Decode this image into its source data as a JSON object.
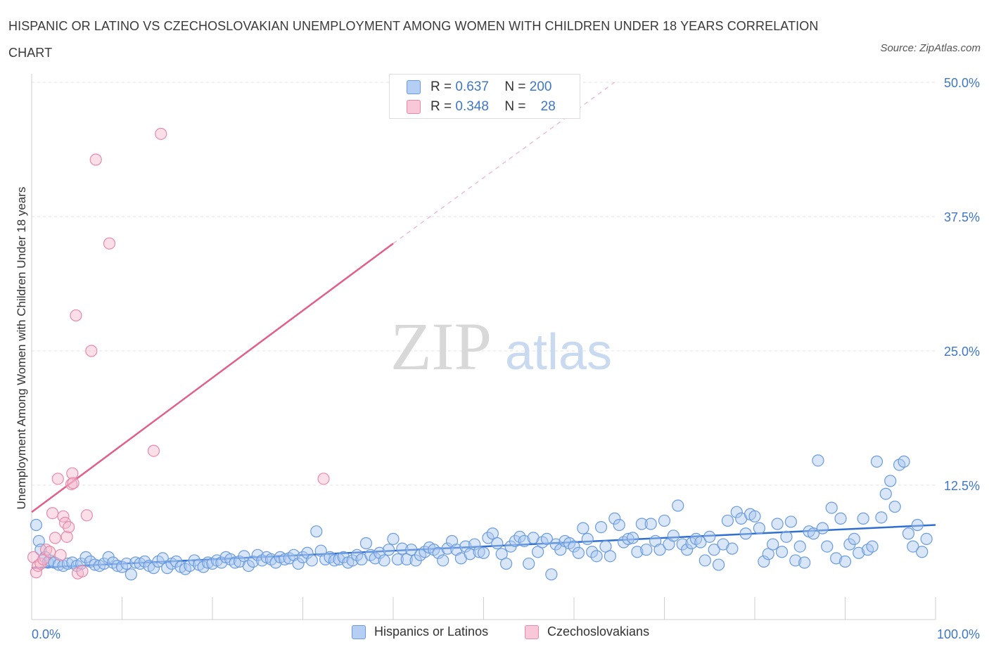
{
  "chart_data": {
    "type": "scatter",
    "title": "HISPANIC OR LATINO VS CZECHOSLOVAKIAN UNEMPLOYMENT AMONG WOMEN WITH CHILDREN UNDER 18 YEARS CORRELATION CHART",
    "source": "Source: ZipAtlas.com",
    "ylabel": "Unemployment Among Women with Children Under 18 years",
    "xlim": [
      0,
      100
    ],
    "ylim": [
      0,
      50
    ],
    "x_tick_labels": [
      "0.0%",
      "100.0%"
    ],
    "y_tick_values": [
      12.5,
      25.0,
      37.5,
      50.0
    ],
    "y_tick_labels": [
      "12.5%",
      "25.0%",
      "37.5%",
      "50.0%"
    ],
    "watermark": "ZIPatlas",
    "legend": [
      {
        "r_label": "R =",
        "r": "0.637",
        "n_label": "N =",
        "n": "200"
      },
      {
        "r_label": "R =",
        "r": "0.348",
        "n_label": "N =",
        "n": "28"
      }
    ],
    "series": [
      {
        "name": "Hispanics or Latinos",
        "color": "#aac8f0",
        "stroke": "#6a9be0",
        "trend": {
          "x0": 0,
          "y0": 4.8,
          "x1": 100,
          "y1": 8.8,
          "color": "#2f6fd0"
        },
        "points": [
          [
            0.5,
            8.8
          ],
          [
            0.8,
            7.3
          ],
          [
            1,
            6.5
          ],
          [
            1.5,
            5.8
          ],
          [
            1.8,
            5.3
          ],
          [
            2,
            5.5
          ],
          [
            2.5,
            5.3
          ],
          [
            3,
            5.1
          ],
          [
            3.5,
            5.0
          ],
          [
            4,
            5.2
          ],
          [
            4.5,
            5.3
          ],
          [
            5,
            5.0
          ],
          [
            5.5,
            5.2
          ],
          [
            6,
            5.8
          ],
          [
            6.5,
            5.4
          ],
          [
            7,
            5.1
          ],
          [
            7.5,
            5.0
          ],
          [
            8,
            5.2
          ],
          [
            8.5,
            5.8
          ],
          [
            9,
            5.3
          ],
          [
            9.5,
            5.0
          ],
          [
            10,
            4.9
          ],
          [
            10.5,
            5.2
          ],
          [
            11,
            4.2
          ],
          [
            11.5,
            5.3
          ],
          [
            12,
            5.2
          ],
          [
            12.5,
            5.4
          ],
          [
            13,
            5.0
          ],
          [
            13.5,
            4.8
          ],
          [
            14,
            5.4
          ],
          [
            14.5,
            5.7
          ],
          [
            15,
            4.8
          ],
          [
            15.5,
            5.2
          ],
          [
            16,
            5.4
          ],
          [
            16.5,
            4.9
          ],
          [
            17,
            4.7
          ],
          [
            17.5,
            5.0
          ],
          [
            18,
            5.5
          ],
          [
            18.5,
            5.1
          ],
          [
            19,
            4.9
          ],
          [
            19.5,
            5.3
          ],
          [
            20,
            5.2
          ],
          [
            20.5,
            5.5
          ],
          [
            21,
            5.3
          ],
          [
            21.5,
            5.8
          ],
          [
            22,
            5.6
          ],
          [
            22.5,
            5.3
          ],
          [
            23,
            5.4
          ],
          [
            23.5,
            5.9
          ],
          [
            24,
            5.0
          ],
          [
            24.5,
            5.4
          ],
          [
            25,
            6.0
          ],
          [
            25.5,
            5.5
          ],
          [
            26,
            5.8
          ],
          [
            26.5,
            5.6
          ],
          [
            27,
            5.3
          ],
          [
            27.5,
            5.8
          ],
          [
            28,
            5.6
          ],
          [
            28.5,
            5.7
          ],
          [
            29,
            6.0
          ],
          [
            29.5,
            5.2
          ],
          [
            30,
            5.8
          ],
          [
            30.5,
            6.2
          ],
          [
            31,
            5.5
          ],
          [
            31.5,
            8.2
          ],
          [
            32,
            6.4
          ],
          [
            32.5,
            5.6
          ],
          [
            33,
            5.8
          ],
          [
            33.5,
            5.5
          ],
          [
            34,
            5.6
          ],
          [
            34.5,
            5.8
          ],
          [
            35,
            5.3
          ],
          [
            35.5,
            5.5
          ],
          [
            36,
            6.0
          ],
          [
            36.5,
            5.6
          ],
          [
            37,
            7.1
          ],
          [
            37.5,
            6.0
          ],
          [
            38,
            5.7
          ],
          [
            38.5,
            6.2
          ],
          [
            39,
            5.5
          ],
          [
            39.5,
            6.5
          ],
          [
            40,
            7.5
          ],
          [
            40.5,
            5.6
          ],
          [
            41,
            6.6
          ],
          [
            41.5,
            5.6
          ],
          [
            42,
            6.5
          ],
          [
            42.5,
            5.5
          ],
          [
            43,
            6.0
          ],
          [
            43.5,
            6.3
          ],
          [
            44,
            6.7
          ],
          [
            44.5,
            6.5
          ],
          [
            45,
            6.2
          ],
          [
            45.5,
            5.5
          ],
          [
            46,
            6.6
          ],
          [
            46.5,
            7.3
          ],
          [
            47,
            6.5
          ],
          [
            47.5,
            5.7
          ],
          [
            48,
            6.8
          ],
          [
            48.5,
            6.1
          ],
          [
            49,
            7.0
          ],
          [
            49.5,
            6.3
          ],
          [
            50,
            6.2
          ],
          [
            50.5,
            7.6
          ],
          [
            51,
            8.0
          ],
          [
            51.5,
            7.1
          ],
          [
            52,
            6.1
          ],
          [
            52.5,
            5.2
          ],
          [
            53,
            6.8
          ],
          [
            53.5,
            7.3
          ],
          [
            54,
            7.7
          ],
          [
            54.5,
            7.3
          ],
          [
            55,
            5.2
          ],
          [
            55.5,
            7.6
          ],
          [
            56,
            6.3
          ],
          [
            56.5,
            7.2
          ],
          [
            57,
            7.5
          ],
          [
            57.5,
            4.2
          ],
          [
            58,
            7.0
          ],
          [
            58.5,
            6.5
          ],
          [
            59,
            7.3
          ],
          [
            59.5,
            7.1
          ],
          [
            60,
            6.8
          ],
          [
            60.5,
            6.2
          ],
          [
            61,
            8.5
          ],
          [
            61.5,
            7.5
          ],
          [
            62,
            6.3
          ],
          [
            62.5,
            5.9
          ],
          [
            63,
            8.6
          ],
          [
            63.5,
            6.8
          ],
          [
            64,
            5.9
          ],
          [
            64.5,
            9.4
          ],
          [
            65,
            8.8
          ],
          [
            65.5,
            7.2
          ],
          [
            66,
            7.5
          ],
          [
            66.5,
            7.6
          ],
          [
            67,
            6.3
          ],
          [
            67.5,
            8.9
          ],
          [
            68,
            6.5
          ],
          [
            68.5,
            8.9
          ],
          [
            69,
            7.3
          ],
          [
            69.5,
            6.5
          ],
          [
            70,
            9.2
          ],
          [
            70.5,
            7.0
          ],
          [
            71,
            7.8
          ],
          [
            71.5,
            10.6
          ],
          [
            72,
            7.0
          ],
          [
            72.5,
            6.5
          ],
          [
            73,
            7.1
          ],
          [
            73.5,
            7.5
          ],
          [
            74,
            7.2
          ],
          [
            74.5,
            5.5
          ],
          [
            75,
            7.7
          ],
          [
            75.5,
            6.5
          ],
          [
            76,
            5.1
          ],
          [
            76.5,
            7.0
          ],
          [
            77,
            9.2
          ],
          [
            77.5,
            6.6
          ],
          [
            78,
            10.0
          ],
          [
            78.5,
            9.4
          ],
          [
            79,
            8.0
          ],
          [
            79.5,
            9.8
          ],
          [
            80,
            9.6
          ],
          [
            80.5,
            8.5
          ],
          [
            81,
            5.4
          ],
          [
            81.5,
            6.1
          ],
          [
            82,
            7.0
          ],
          [
            82.5,
            8.9
          ],
          [
            83,
            6.3
          ],
          [
            83.5,
            7.7
          ],
          [
            84,
            9.1
          ],
          [
            84.5,
            5.5
          ],
          [
            85,
            6.8
          ],
          [
            85.5,
            5.3
          ],
          [
            86,
            8.2
          ],
          [
            86.5,
            8.0
          ],
          [
            87,
            14.8
          ],
          [
            87.5,
            8.5
          ],
          [
            88,
            6.8
          ],
          [
            88.5,
            10.4
          ],
          [
            89,
            5.7
          ],
          [
            89.5,
            9.4
          ],
          [
            90,
            5.4
          ],
          [
            90.5,
            7.0
          ],
          [
            91,
            7.5
          ],
          [
            91.5,
            6.2
          ],
          [
            92,
            9.4
          ],
          [
            92.5,
            6.5
          ],
          [
            93,
            6.8
          ],
          [
            93.5,
            14.7
          ],
          [
            94,
            9.5
          ],
          [
            94.5,
            11.7
          ],
          [
            95,
            12.9
          ],
          [
            95.5,
            10.5
          ],
          [
            96,
            14.4
          ],
          [
            96.5,
            14.7
          ],
          [
            97,
            8.0
          ],
          [
            97.5,
            6.8
          ],
          [
            98,
            8.8
          ],
          [
            98.5,
            6.3
          ],
          [
            99,
            7.5
          ]
        ]
      },
      {
        "name": "Czechoslovakians",
        "color": "#f5b8cc",
        "stroke": "#e88aa8",
        "trend": {
          "x0": 0,
          "y0": 10.0,
          "x1": 40,
          "y1": 35.0,
          "color": "#e0608a"
        },
        "trend_dashed_to": {
          "x": 64.5,
          "y": 50.0
        },
        "points": [
          [
            0.2,
            5.8
          ],
          [
            0.5,
            4.4
          ],
          [
            0.7,
            5.0
          ],
          [
            1,
            5.2
          ],
          [
            1.3,
            5.6
          ],
          [
            1.6,
            6.5
          ],
          [
            2,
            6.3
          ],
          [
            2.3,
            9.9
          ],
          [
            2.6,
            7.6
          ],
          [
            2.9,
            13.1
          ],
          [
            3.2,
            6.0
          ],
          [
            3.5,
            9.6
          ],
          [
            3.7,
            9.0
          ],
          [
            3.9,
            7.7
          ],
          [
            4.1,
            8.6
          ],
          [
            4.4,
            12.6
          ],
          [
            4.5,
            13.6
          ],
          [
            4.6,
            12.7
          ],
          [
            4.9,
            28.3
          ],
          [
            5.1,
            4.3
          ],
          [
            5.6,
            4.5
          ],
          [
            6.1,
            9.7
          ],
          [
            6.6,
            25.0
          ],
          [
            7.1,
            42.8
          ],
          [
            8.6,
            35.0
          ],
          [
            13.5,
            15.7
          ],
          [
            14.3,
            45.2
          ],
          [
            32.3,
            13.1
          ]
        ]
      }
    ]
  },
  "bottom_legend": {
    "series0": "Hispanics or Latinos",
    "series1": "Czechoslovakians"
  }
}
